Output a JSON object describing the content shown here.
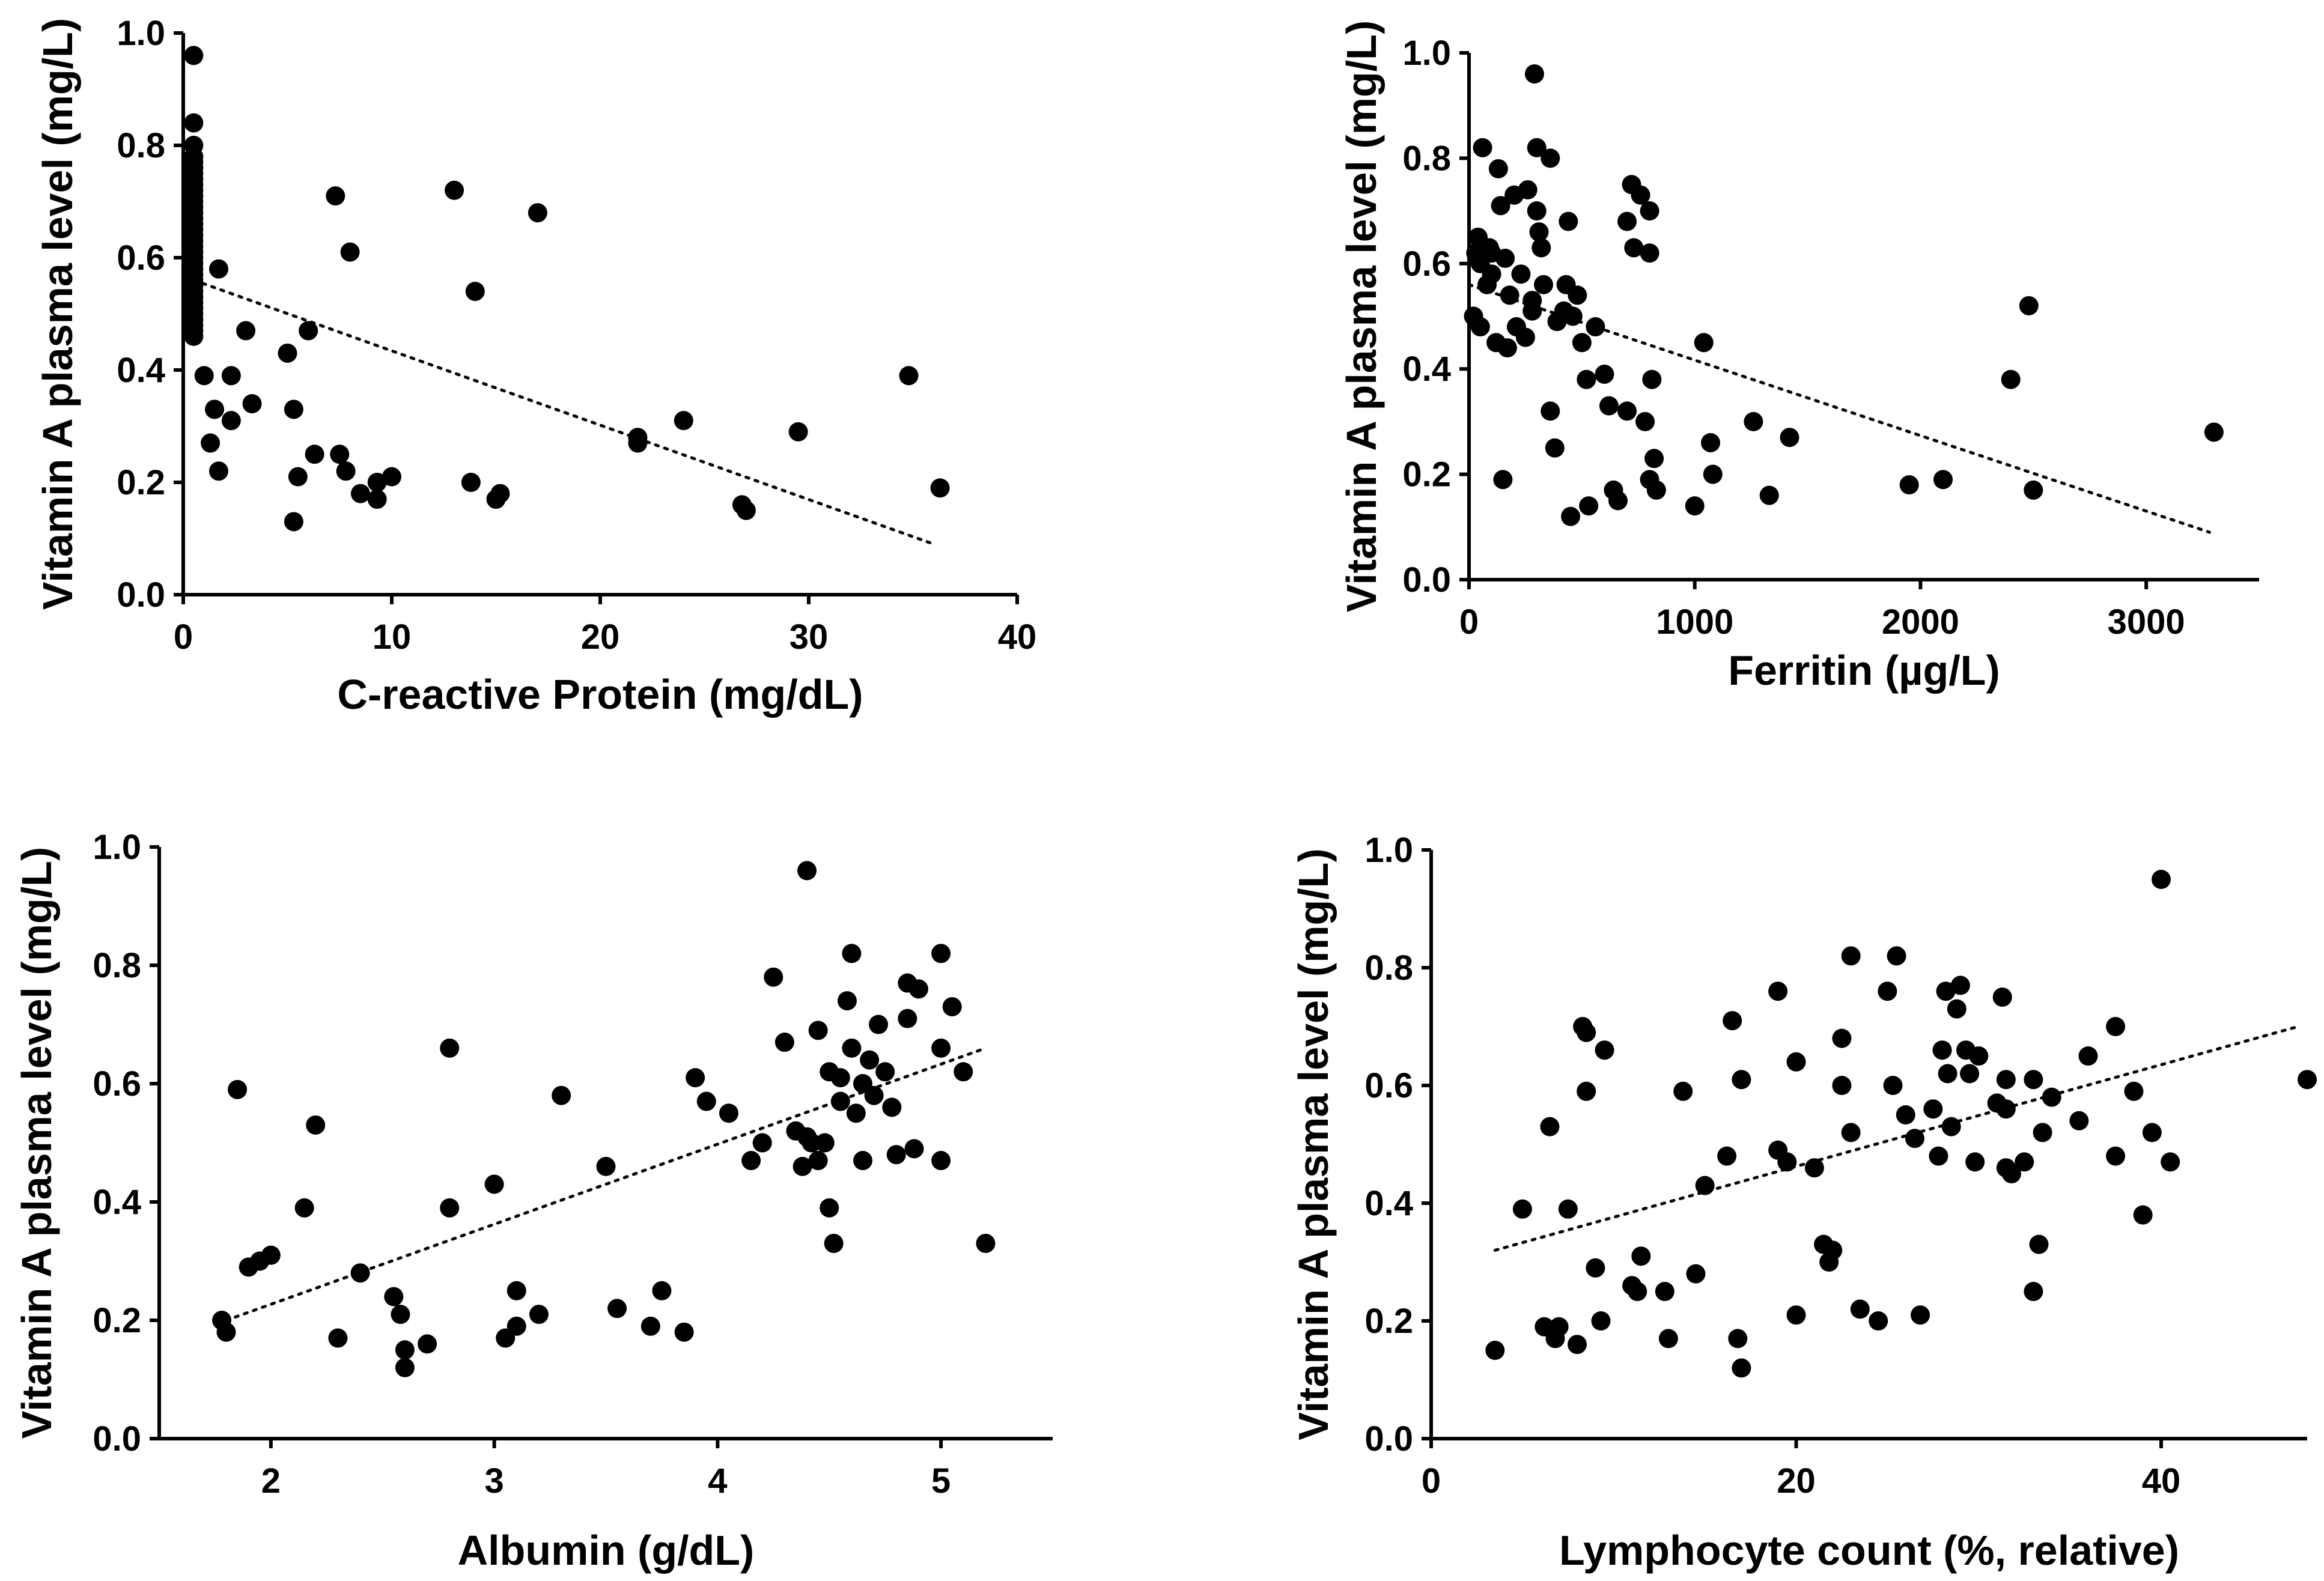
{
  "chart_data": [
    {
      "type": "scatter",
      "panel": "top-left",
      "title": "",
      "xlabel": "C-reactive Protein (mg/dL)",
      "ylabel": "Vitamin A plasma level (mg/L)",
      "xlim": [
        0,
        40
      ],
      "ylim": [
        0,
        1.0
      ],
      "xticks": [
        0,
        10,
        20,
        30,
        40
      ],
      "xtick_labels": [
        "0",
        "10",
        "20",
        "30",
        "40"
      ],
      "yticks": [
        0,
        0.2,
        0.4,
        0.6,
        0.8,
        1.0
      ],
      "ytick_labels": [
        "0.0",
        "0.2",
        "0.4",
        "0.6",
        "0.8",
        "1.0"
      ],
      "trendline": {
        "x": [
          0.5,
          36.0
        ],
        "y": [
          0.56,
          0.09
        ]
      },
      "points": [
        [
          0.5,
          0.96
        ],
        [
          0.5,
          0.84
        ],
        [
          0.5,
          0.8
        ],
        [
          0.5,
          0.78
        ],
        [
          0.5,
          0.77
        ],
        [
          0.5,
          0.76
        ],
        [
          0.5,
          0.75
        ],
        [
          0.5,
          0.74
        ],
        [
          0.5,
          0.73
        ],
        [
          0.5,
          0.72
        ],
        [
          0.5,
          0.71
        ],
        [
          0.5,
          0.7
        ],
        [
          0.5,
          0.69
        ],
        [
          0.5,
          0.68
        ],
        [
          0.5,
          0.67
        ],
        [
          0.5,
          0.66
        ],
        [
          0.5,
          0.65
        ],
        [
          0.5,
          0.64
        ],
        [
          0.5,
          0.63
        ],
        [
          0.5,
          0.62
        ],
        [
          0.5,
          0.61
        ],
        [
          0.5,
          0.6
        ],
        [
          0.5,
          0.59
        ],
        [
          0.5,
          0.58
        ],
        [
          0.5,
          0.57
        ],
        [
          0.5,
          0.56
        ],
        [
          0.5,
          0.55
        ],
        [
          0.5,
          0.54
        ],
        [
          0.5,
          0.53
        ],
        [
          0.5,
          0.52
        ],
        [
          0.5,
          0.51
        ],
        [
          0.5,
          0.5
        ],
        [
          0.5,
          0.49
        ],
        [
          0.5,
          0.48
        ],
        [
          0.5,
          0.47
        ],
        [
          0.5,
          0.46
        ],
        [
          1.0,
          0.39
        ],
        [
          1.3,
          0.27
        ],
        [
          1.5,
          0.33
        ],
        [
          1.7,
          0.22
        ],
        [
          1.7,
          0.58
        ],
        [
          2.3,
          0.31
        ],
        [
          2.3,
          0.39
        ],
        [
          3.0,
          0.47
        ],
        [
          3.3,
          0.34
        ],
        [
          5.0,
          0.43
        ],
        [
          5.3,
          0.33
        ],
        [
          5.3,
          0.13
        ],
        [
          5.5,
          0.21
        ],
        [
          6.0,
          0.47
        ],
        [
          6.3,
          0.25
        ],
        [
          7.3,
          0.71
        ],
        [
          7.5,
          0.25
        ],
        [
          7.8,
          0.22
        ],
        [
          8.0,
          0.61
        ],
        [
          8.5,
          0.18
        ],
        [
          9.3,
          0.2
        ],
        [
          9.3,
          0.17
        ],
        [
          10.0,
          0.21
        ],
        [
          13.0,
          0.72
        ],
        [
          13.8,
          0.2
        ],
        [
          14.0,
          0.54
        ],
        [
          15.0,
          0.17
        ],
        [
          15.2,
          0.18
        ],
        [
          17.0,
          0.68
        ],
        [
          21.8,
          0.28
        ],
        [
          21.8,
          0.27
        ],
        [
          24.0,
          0.31
        ],
        [
          26.8,
          0.16
        ],
        [
          27.0,
          0.15
        ],
        [
          29.5,
          0.29
        ],
        [
          34.8,
          0.39
        ],
        [
          36.3,
          0.19
        ]
      ]
    },
    {
      "type": "scatter",
      "panel": "top-right",
      "title": "",
      "xlabel": "Ferritin (µg/L)",
      "ylabel": "Vitamin A plasma level (mg/L)",
      "xlim": [
        0,
        3500
      ],
      "ylim": [
        0,
        1.0
      ],
      "xticks": [
        0,
        1000,
        2000,
        3000
      ],
      "xtick_labels": [
        "0",
        "1000",
        "2000",
        "3000"
      ],
      "yticks": [
        0,
        0.2,
        0.4,
        0.6,
        0.8,
        1.0
      ],
      "ytick_labels": [
        "0.0",
        "0.2",
        "0.4",
        "0.6",
        "0.8",
        "1.0"
      ],
      "trendline": {
        "x": [
          0,
          3280
        ],
        "y": [
          0.56,
          0.09
        ]
      },
      "points": [
        [
          20,
          0.5
        ],
        [
          30,
          0.62
        ],
        [
          40,
          0.65
        ],
        [
          50,
          0.6
        ],
        [
          50,
          0.48
        ],
        [
          60,
          0.82
        ],
        [
          80,
          0.56
        ],
        [
          90,
          0.63
        ],
        [
          100,
          0.58
        ],
        [
          100,
          0.62
        ],
        [
          120,
          0.45
        ],
        [
          130,
          0.78
        ],
        [
          140,
          0.71
        ],
        [
          150,
          0.19
        ],
        [
          160,
          0.61
        ],
        [
          170,
          0.44
        ],
        [
          180,
          0.54
        ],
        [
          200,
          0.73
        ],
        [
          210,
          0.48
        ],
        [
          230,
          0.58
        ],
        [
          250,
          0.46
        ],
        [
          260,
          0.74
        ],
        [
          280,
          0.51
        ],
        [
          280,
          0.53
        ],
        [
          290,
          0.96
        ],
        [
          300,
          0.82
        ],
        [
          300,
          0.7
        ],
        [
          310,
          0.66
        ],
        [
          320,
          0.63
        ],
        [
          330,
          0.56
        ],
        [
          360,
          0.8
        ],
        [
          360,
          0.32
        ],
        [
          380,
          0.25
        ],
        [
          390,
          0.49
        ],
        [
          420,
          0.51
        ],
        [
          430,
          0.56
        ],
        [
          440,
          0.68
        ],
        [
          450,
          0.12
        ],
        [
          460,
          0.5
        ],
        [
          480,
          0.54
        ],
        [
          500,
          0.45
        ],
        [
          520,
          0.38
        ],
        [
          530,
          0.14
        ],
        [
          560,
          0.48
        ],
        [
          600,
          0.39
        ],
        [
          620,
          0.33
        ],
        [
          640,
          0.17
        ],
        [
          660,
          0.15
        ],
        [
          700,
          0.32
        ],
        [
          700,
          0.68
        ],
        [
          720,
          0.75
        ],
        [
          730,
          0.63
        ],
        [
          760,
          0.73
        ],
        [
          780,
          0.3
        ],
        [
          800,
          0.19
        ],
        [
          800,
          0.7
        ],
        [
          800,
          0.62
        ],
        [
          810,
          0.38
        ],
        [
          820,
          0.23
        ],
        [
          830,
          0.17
        ],
        [
          1000,
          0.14
        ],
        [
          1040,
          0.45
        ],
        [
          1070,
          0.26
        ],
        [
          1080,
          0.2
        ],
        [
          1260,
          0.3
        ],
        [
          1330,
          0.16
        ],
        [
          1420,
          0.27
        ],
        [
          1950,
          0.18
        ],
        [
          2100,
          0.19
        ],
        [
          2400,
          0.38
        ],
        [
          2480,
          0.52
        ],
        [
          2500,
          0.17
        ],
        [
          3300,
          0.28
        ]
      ]
    },
    {
      "type": "scatter",
      "panel": "bottom-left",
      "title": "",
      "xlabel": "Albumin (g/dL)",
      "ylabel": "Vitamin A plasma level (mg/L)",
      "xlim": [
        1.5,
        5.5
      ],
      "ylim": [
        0,
        1.0
      ],
      "xticks": [
        2,
        3,
        4,
        5
      ],
      "xtick_labels": [
        "2",
        "3",
        "4",
        "5"
      ],
      "yticks": [
        0,
        0.2,
        0.4,
        0.6,
        0.8,
        1.0
      ],
      "ytick_labels": [
        "0.0",
        "0.2",
        "0.4",
        "0.6",
        "0.8",
        "1.0"
      ],
      "trendline": {
        "x": [
          1.8,
          5.2
        ],
        "y": [
          0.2,
          0.66
        ]
      },
      "points": [
        [
          1.78,
          0.2
        ],
        [
          1.8,
          0.18
        ],
        [
          1.85,
          0.59
        ],
        [
          1.9,
          0.29
        ],
        [
          1.95,
          0.3
        ],
        [
          2.0,
          0.31
        ],
        [
          2.15,
          0.39
        ],
        [
          2.2,
          0.53
        ],
        [
          2.3,
          0.17
        ],
        [
          2.4,
          0.28
        ],
        [
          2.55,
          0.24
        ],
        [
          2.58,
          0.21
        ],
        [
          2.6,
          0.12
        ],
        [
          2.6,
          0.15
        ],
        [
          2.7,
          0.16
        ],
        [
          2.8,
          0.39
        ],
        [
          2.8,
          0.66
        ],
        [
          3.0,
          0.43
        ],
        [
          3.05,
          0.17
        ],
        [
          3.1,
          0.19
        ],
        [
          3.1,
          0.25
        ],
        [
          3.2,
          0.21
        ],
        [
          3.3,
          0.58
        ],
        [
          3.5,
          0.46
        ],
        [
          3.55,
          0.22
        ],
        [
          3.7,
          0.19
        ],
        [
          3.75,
          0.25
        ],
        [
          3.85,
          0.18
        ],
        [
          3.9,
          0.61
        ],
        [
          3.95,
          0.57
        ],
        [
          4.05,
          0.55
        ],
        [
          4.15,
          0.47
        ],
        [
          4.2,
          0.5
        ],
        [
          4.25,
          0.78
        ],
        [
          4.3,
          0.67
        ],
        [
          4.35,
          0.52
        ],
        [
          4.38,
          0.46
        ],
        [
          4.4,
          0.96
        ],
        [
          4.4,
          0.51
        ],
        [
          4.42,
          0.5
        ],
        [
          4.45,
          0.69
        ],
        [
          4.45,
          0.47
        ],
        [
          4.48,
          0.5
        ],
        [
          4.5,
          0.62
        ],
        [
          4.5,
          0.39
        ],
        [
          4.52,
          0.33
        ],
        [
          4.55,
          0.57
        ],
        [
          4.55,
          0.61
        ],
        [
          4.58,
          0.74
        ],
        [
          4.6,
          0.82
        ],
        [
          4.6,
          0.66
        ],
        [
          4.62,
          0.55
        ],
        [
          4.65,
          0.47
        ],
        [
          4.65,
          0.6
        ],
        [
          4.68,
          0.64
        ],
        [
          4.7,
          0.58
        ],
        [
          4.72,
          0.7
        ],
        [
          4.75,
          0.62
        ],
        [
          4.78,
          0.56
        ],
        [
          4.8,
          0.48
        ],
        [
          4.85,
          0.77
        ],
        [
          4.85,
          0.71
        ],
        [
          4.88,
          0.49
        ],
        [
          4.9,
          0.76
        ],
        [
          5.0,
          0.82
        ],
        [
          5.0,
          0.47
        ],
        [
          5.0,
          0.66
        ],
        [
          5.05,
          0.73
        ],
        [
          5.1,
          0.62
        ],
        [
          5.2,
          0.33
        ]
      ]
    },
    {
      "type": "scatter",
      "panel": "bottom-right",
      "title": "",
      "xlabel": "Lymphocyte count (%, relative)",
      "ylabel": "Vitamin A plasma level (mg/L)",
      "xlim": [
        0,
        48
      ],
      "ylim": [
        0,
        1.0
      ],
      "xticks": [
        0,
        20,
        40
      ],
      "xtick_labels": [
        "0",
        "20",
        "40"
      ],
      "yticks": [
        0,
        0.2,
        0.4,
        0.6,
        0.8,
        1.0
      ],
      "ytick_labels": [
        "0.0",
        "0.2",
        "0.4",
        "0.6",
        "0.8",
        "1.0"
      ],
      "trendline": {
        "x": [
          3.5,
          47.5
        ],
        "y": [
          0.32,
          0.7
        ]
      },
      "points": [
        [
          3.5,
          0.15
        ],
        [
          5.0,
          0.39
        ],
        [
          6.2,
          0.19
        ],
        [
          6.5,
          0.53
        ],
        [
          6.8,
          0.17
        ],
        [
          7.0,
          0.19
        ],
        [
          7.5,
          0.39
        ],
        [
          8.0,
          0.16
        ],
        [
          8.3,
          0.7
        ],
        [
          8.5,
          0.69
        ],
        [
          8.5,
          0.59
        ],
        [
          9.0,
          0.29
        ],
        [
          9.3,
          0.2
        ],
        [
          9.5,
          0.66
        ],
        [
          11.0,
          0.26
        ],
        [
          11.3,
          0.25
        ],
        [
          11.5,
          0.31
        ],
        [
          12.8,
          0.25
        ],
        [
          13.0,
          0.17
        ],
        [
          13.8,
          0.59
        ],
        [
          14.5,
          0.28
        ],
        [
          15.0,
          0.43
        ],
        [
          16.2,
          0.48
        ],
        [
          16.5,
          0.71
        ],
        [
          16.8,
          0.17
        ],
        [
          17.0,
          0.12
        ],
        [
          17.0,
          0.61
        ],
        [
          19.0,
          0.76
        ],
        [
          19.0,
          0.49
        ],
        [
          19.5,
          0.47
        ],
        [
          20.0,
          0.21
        ],
        [
          20.0,
          0.64
        ],
        [
          21.0,
          0.46
        ],
        [
          21.5,
          0.33
        ],
        [
          21.8,
          0.3
        ],
        [
          22.0,
          0.32
        ],
        [
          22.5,
          0.68
        ],
        [
          22.5,
          0.6
        ],
        [
          23.0,
          0.82
        ],
        [
          23.0,
          0.52
        ],
        [
          23.5,
          0.22
        ],
        [
          24.5,
          0.2
        ],
        [
          25.0,
          0.76
        ],
        [
          25.3,
          0.6
        ],
        [
          25.5,
          0.82
        ],
        [
          26.0,
          0.55
        ],
        [
          26.5,
          0.51
        ],
        [
          26.8,
          0.21
        ],
        [
          27.5,
          0.56
        ],
        [
          27.8,
          0.48
        ],
        [
          28.0,
          0.66
        ],
        [
          28.2,
          0.76
        ],
        [
          28.3,
          0.62
        ],
        [
          28.5,
          0.53
        ],
        [
          28.8,
          0.73
        ],
        [
          29.0,
          0.77
        ],
        [
          29.3,
          0.66
        ],
        [
          29.5,
          0.62
        ],
        [
          29.8,
          0.47
        ],
        [
          30.0,
          0.65
        ],
        [
          31.0,
          0.57
        ],
        [
          31.3,
          0.75
        ],
        [
          31.5,
          0.61
        ],
        [
          31.5,
          0.56
        ],
        [
          31.5,
          0.46
        ],
        [
          31.8,
          0.45
        ],
        [
          32.5,
          0.47
        ],
        [
          33.0,
          0.61
        ],
        [
          33.0,
          0.25
        ],
        [
          33.3,
          0.33
        ],
        [
          33.5,
          0.52
        ],
        [
          34.0,
          0.58
        ],
        [
          35.5,
          0.54
        ],
        [
          36.0,
          0.65
        ],
        [
          37.5,
          0.7
        ],
        [
          37.5,
          0.48
        ],
        [
          38.5,
          0.59
        ],
        [
          39.0,
          0.38
        ],
        [
          39.5,
          0.52
        ],
        [
          40.0,
          0.95
        ],
        [
          40.5,
          0.47
        ],
        [
          48.0,
          0.61
        ]
      ]
    }
  ]
}
